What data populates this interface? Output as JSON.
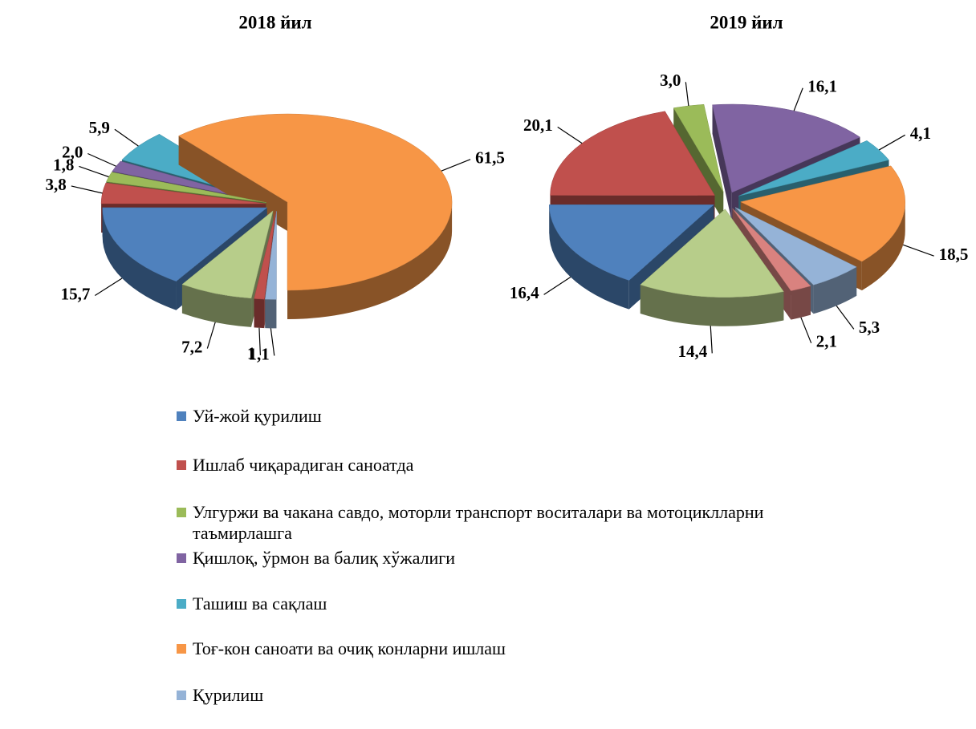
{
  "chart_data": [
    {
      "type": "pie",
      "title": "2018 йил",
      "categories": [
        "Уй-жой қурилиш",
        "Ишлаб чиқарадиган саноатда",
        "Улгуржи ва чакана савдо, моторли транспорт воситалари ва мотоциклларни таъмирлашга",
        "Қишлоқ, ўрмон ва балиқ хўжалиги",
        "Ташиш ва сақлаш",
        "Тоғ-кон саноати ва очиқ конларни ишлаш",
        "Қурилиш",
        null,
        null
      ],
      "values": [
        15.7,
        3.8,
        1.8,
        2.0,
        5.9,
        61.5,
        1.1,
        1,
        7.2
      ],
      "value_labels": [
        "15,7",
        "3,8",
        "1,8",
        "2,0",
        "5,9",
        "61,5",
        "1,1",
        "1",
        "7,2"
      ],
      "colors": [
        "#4f81bd",
        "#c0504d",
        "#9bbb59",
        "#8064a2",
        "#4bacc6",
        "#f79646",
        "#95b3d7",
        "#c0504d",
        "#b7cd8a"
      ]
    },
    {
      "type": "pie",
      "title": "2019 йил",
      "categories": [
        "Уй-жой қурилиш",
        "Ишлаб чиқарадиган саноатда",
        "Улгуржи ва чакана савдо, моторли транспорт воситалари ва мотоциклларни таъмирлашга",
        "Қишлоқ, ўрмон ва балиқ хўжалиги",
        "Ташиш ва сақлаш",
        "Тоғ-кон саноати ва очиқ конларни ишлаш",
        "Қурилиш",
        null,
        null
      ],
      "values": [
        16.4,
        20.1,
        3.0,
        16.1,
        4.1,
        18.5,
        5.3,
        2.1,
        14.4
      ],
      "value_labels": [
        "16,4",
        "20,1",
        "3,0",
        "16,1",
        "4,1",
        "18,5",
        "5,3",
        "2,1",
        "14,4"
      ],
      "colors": [
        "#4f81bd",
        "#c0504d",
        "#9bbb59",
        "#8064a2",
        "#4bacc6",
        "#f79646",
        "#95b3d7",
        "#d9827f",
        "#b7cd8a"
      ]
    }
  ]
}
